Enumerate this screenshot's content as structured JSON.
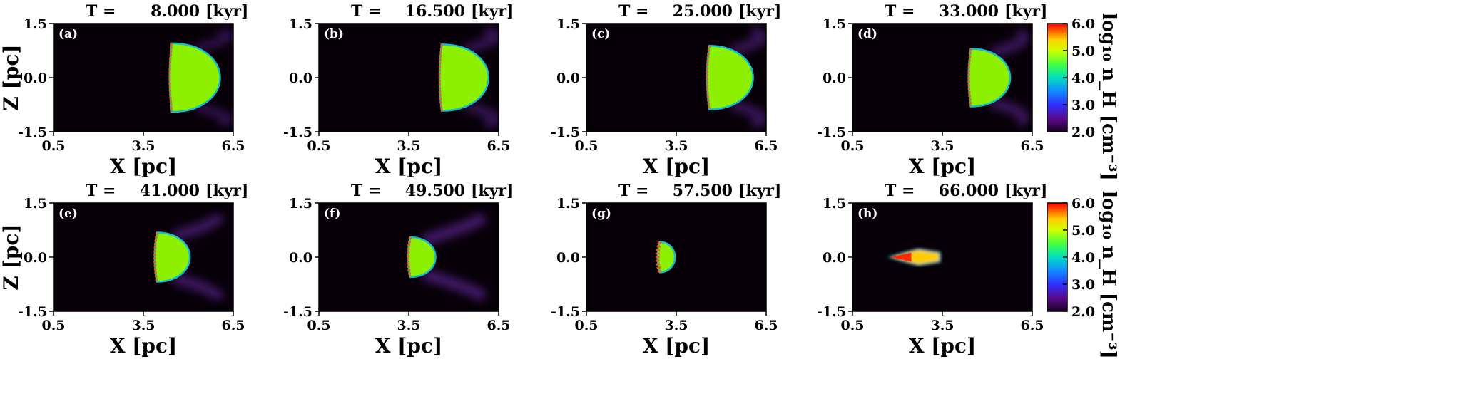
{
  "chart_data": {
    "type": "heatmap",
    "time_prefix": "T =",
    "time_unit": "[kyr]",
    "xlabel": "X [pc]",
    "ylabel": "Z [pc]",
    "xlim": [
      0.5,
      6.5
    ],
    "ylim": [
      -1.5,
      1.5
    ],
    "xticks": [
      "0.5",
      "3.5",
      "6.5"
    ],
    "yticks": [
      "1.5",
      "0.0",
      "-1.5"
    ],
    "colorbar": {
      "label": "log₁₀ n_H [cm⁻³]",
      "range": [
        2.0,
        6.0
      ],
      "ticks": [
        "6.0",
        "5.0",
        "4.0",
        "3.0",
        "2.0"
      ]
    },
    "panels": [
      {
        "label": "(a)",
        "time": "8.000",
        "front_x": 4.45,
        "radius_z": 0.95,
        "tail": 0.35,
        "core": 0.05
      },
      {
        "label": "(b)",
        "time": "16.500",
        "front_x": 4.6,
        "radius_z": 0.92,
        "tail": 0.45,
        "core": 0.05
      },
      {
        "label": "(c)",
        "time": "25.000",
        "front_x": 4.6,
        "radius_z": 0.88,
        "tail": 0.5,
        "core": 0.08
      },
      {
        "label": "(d)",
        "time": "33.000",
        "front_x": 4.45,
        "radius_z": 0.8,
        "tail": 0.55,
        "core": 0.1
      },
      {
        "label": "(e)",
        "time": "41.000",
        "front_x": 3.95,
        "radius_z": 0.68,
        "tail": 0.62,
        "core": 0.12
      },
      {
        "label": "(f)",
        "time": "49.500",
        "front_x": 3.55,
        "radius_z": 0.55,
        "tail": 0.7,
        "core": 0.2
      },
      {
        "label": "(g)",
        "time": "57.500",
        "front_x": 2.95,
        "radius_z": 0.42,
        "tail": 0.8,
        "core": 0.5
      },
      {
        "label": "(h)",
        "time": "66.000",
        "front_x": 1.75,
        "radius_z": 0.25,
        "tail": 0.9,
        "core": 0.9
      }
    ]
  }
}
